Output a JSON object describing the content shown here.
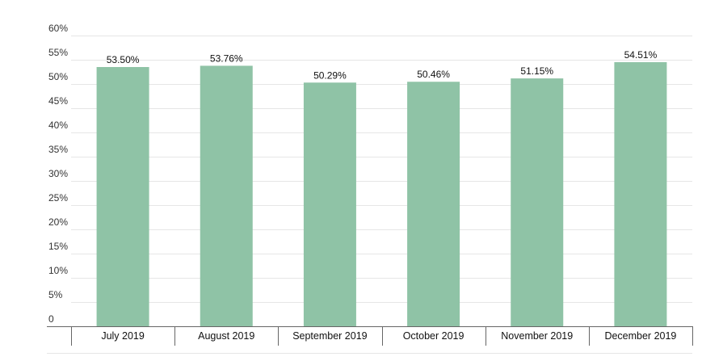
{
  "chart_data": {
    "type": "bar",
    "categories": [
      "July 2019",
      "August 2019",
      "September 2019",
      "October 2019",
      "November 2019",
      "December 2019"
    ],
    "values": [
      53.5,
      53.76,
      50.29,
      50.46,
      51.15,
      54.51
    ],
    "value_labels": [
      "53.50%",
      "53.76%",
      "50.29%",
      "50.46%",
      "51.15%",
      "54.51%"
    ],
    "ylim": [
      0,
      60
    ],
    "y_ticks": [
      0,
      5,
      10,
      15,
      20,
      25,
      30,
      35,
      40,
      45,
      50,
      55,
      60
    ],
    "y_tick_labels": [
      "0",
      "5%",
      "10%",
      "15%",
      "20%",
      "25%",
      "30%",
      "35%",
      "40%",
      "45%",
      "50%",
      "55%",
      "60%"
    ],
    "grid": true,
    "bar_color": "#8fc3a6",
    "title": "",
    "xlabel": "",
    "ylabel": ""
  }
}
